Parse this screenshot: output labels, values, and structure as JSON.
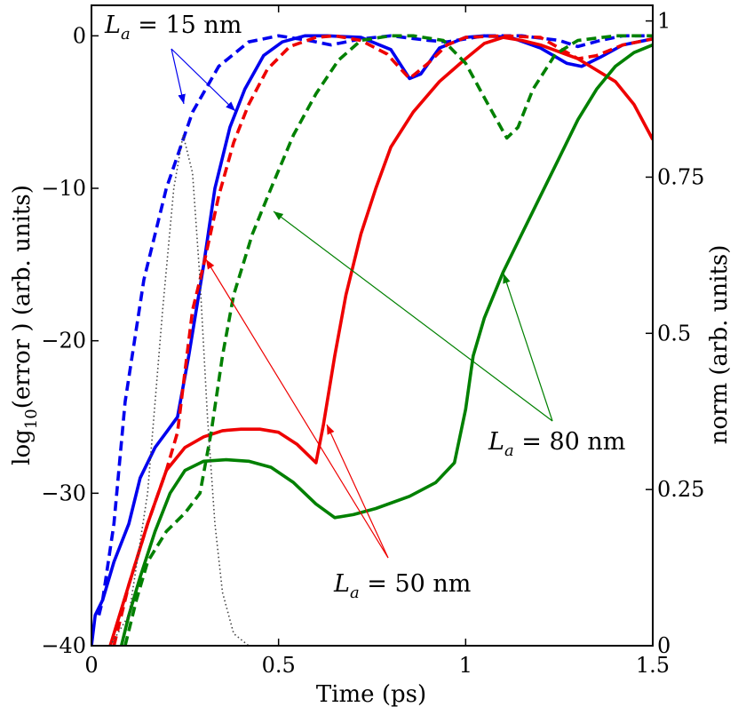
{
  "chart_data": {
    "type": "line",
    "xlabel": "Time  (ps)",
    "ylabel_left": "log10(error ) (arb. units)",
    "ylabel_left_parts": {
      "pre": "log",
      "sub": "10",
      "post": "(error ) (arb. units)"
    },
    "ylabel_right": "norm (arb. units)",
    "xlim": [
      0,
      1.5
    ],
    "ylim_left": [
      -40,
      2
    ],
    "ylim_right": [
      0,
      1.025
    ],
    "x_ticks": [
      0,
      0.5,
      1,
      1.5
    ],
    "x_tick_labels": [
      "0",
      "0.5",
      "1",
      "1.5"
    ],
    "y_left_ticks": [
      0,
      -10,
      -20,
      -30,
      -40
    ],
    "y_left_tick_labels": [
      "0",
      "−10",
      "−20",
      "−30",
      "−40"
    ],
    "y_right_ticks": [
      1,
      0.75,
      0.5,
      0.25,
      0
    ],
    "y_right_tick_labels": [
      "1",
      "0.75",
      "0.5",
      "0.25",
      "0"
    ],
    "series": [
      {
        "name": "La=15 nm solid",
        "color": "#0000ee",
        "style": "solid",
        "points": [
          [
            0,
            -40
          ],
          [
            0.01,
            -38
          ],
          [
            0.03,
            -37
          ],
          [
            0.06,
            -34.5
          ],
          [
            0.1,
            -32
          ],
          [
            0.13,
            -29
          ],
          [
            0.17,
            -27
          ],
          [
            0.2,
            -26
          ],
          [
            0.23,
            -25
          ],
          [
            0.26,
            -21
          ],
          [
            0.3,
            -15
          ],
          [
            0.33,
            -10
          ],
          [
            0.37,
            -6
          ],
          [
            0.41,
            -3.5
          ],
          [
            0.46,
            -1.3
          ],
          [
            0.51,
            -0.4
          ],
          [
            0.57,
            0
          ],
          [
            0.63,
            0
          ],
          [
            0.72,
            -0.1
          ],
          [
            0.8,
            -0.9
          ],
          [
            0.85,
            -2.8
          ],
          [
            0.88,
            -2.5
          ],
          [
            0.93,
            -0.8
          ],
          [
            1.0,
            -0.1
          ],
          [
            1.05,
            0
          ],
          [
            1.12,
            -0.1
          ],
          [
            1.2,
            -0.8
          ],
          [
            1.27,
            -1.8
          ],
          [
            1.31,
            -2.0
          ],
          [
            1.36,
            -1.4
          ],
          [
            1.42,
            -0.6
          ],
          [
            1.5,
            -0.2
          ]
        ]
      },
      {
        "name": "La=15 nm dashed",
        "color": "#0000ee",
        "style": "dashed",
        "points": [
          [
            0.02,
            -38
          ],
          [
            0.03,
            -37
          ],
          [
            0.06,
            -32
          ],
          [
            0.09,
            -24
          ],
          [
            0.14,
            -16
          ],
          [
            0.2,
            -10
          ],
          [
            0.27,
            -5
          ],
          [
            0.34,
            -2
          ],
          [
            0.42,
            -0.4
          ],
          [
            0.5,
            0
          ],
          [
            0.58,
            -0.3
          ],
          [
            0.64,
            -0.6
          ],
          [
            0.72,
            -0.2
          ],
          [
            0.8,
            0
          ],
          [
            0.9,
            -0.3
          ],
          [
            0.95,
            -0.4
          ],
          [
            1.05,
            0
          ],
          [
            1.15,
            0
          ],
          [
            1.25,
            -0.3
          ],
          [
            1.3,
            -0.7
          ],
          [
            1.36,
            -0.3
          ],
          [
            1.42,
            0
          ],
          [
            1.5,
            0
          ]
        ]
      },
      {
        "name": "La=50 nm solid",
        "color": "#ee0000",
        "style": "solid",
        "points": [
          [
            0.05,
            -40
          ],
          [
            0.1,
            -36
          ],
          [
            0.15,
            -32
          ],
          [
            0.2,
            -28.5
          ],
          [
            0.25,
            -27
          ],
          [
            0.3,
            -26.3
          ],
          [
            0.35,
            -25.9
          ],
          [
            0.4,
            -25.8
          ],
          [
            0.45,
            -25.8
          ],
          [
            0.5,
            -26
          ],
          [
            0.55,
            -26.8
          ],
          [
            0.6,
            -28
          ],
          [
            0.62,
            -25.5
          ],
          [
            0.65,
            -21
          ],
          [
            0.68,
            -17
          ],
          [
            0.72,
            -13
          ],
          [
            0.76,
            -10
          ],
          [
            0.8,
            -7.3
          ],
          [
            0.86,
            -5
          ],
          [
            0.93,
            -3
          ],
          [
            1.0,
            -1.5
          ],
          [
            1.05,
            -0.5
          ],
          [
            1.1,
            -0.1
          ],
          [
            1.15,
            -0.3
          ],
          [
            1.2,
            -0.6
          ],
          [
            1.3,
            -1.5
          ],
          [
            1.4,
            -3
          ],
          [
            1.45,
            -4.5
          ],
          [
            1.5,
            -6.8
          ]
        ]
      },
      {
        "name": "La=50 nm dashed",
        "color": "#ee0000",
        "style": "dashed",
        "points": [
          [
            0.06,
            -40
          ],
          [
            0.1,
            -36
          ],
          [
            0.15,
            -32
          ],
          [
            0.2,
            -28.5
          ],
          [
            0.23,
            -26
          ],
          [
            0.25,
            -22
          ],
          [
            0.27,
            -18
          ],
          [
            0.3,
            -15
          ],
          [
            0.34,
            -10.5
          ],
          [
            0.38,
            -7
          ],
          [
            0.42,
            -4.5
          ],
          [
            0.47,
            -2.2
          ],
          [
            0.53,
            -0.7
          ],
          [
            0.6,
            -0.1
          ],
          [
            0.65,
            0
          ],
          [
            0.72,
            -0.3
          ],
          [
            0.79,
            -1.2
          ],
          [
            0.85,
            -2.8
          ],
          [
            0.9,
            -1.8
          ],
          [
            0.95,
            -0.6
          ],
          [
            1.0,
            -0.1
          ],
          [
            1.1,
            0
          ],
          [
            1.2,
            -0.1
          ],
          [
            1.3,
            -1.5
          ],
          [
            1.35,
            -1.3
          ],
          [
            1.42,
            -0.6
          ],
          [
            1.5,
            -0.2
          ]
        ]
      },
      {
        "name": "La=80 nm solid",
        "color": "#008000",
        "style": "solid",
        "points": [
          [
            0.08,
            -40
          ],
          [
            0.1,
            -38
          ],
          [
            0.13,
            -35.5
          ],
          [
            0.17,
            -32.5
          ],
          [
            0.21,
            -30
          ],
          [
            0.25,
            -28.5
          ],
          [
            0.3,
            -27.9
          ],
          [
            0.36,
            -27.8
          ],
          [
            0.42,
            -27.9
          ],
          [
            0.48,
            -28.3
          ],
          [
            0.54,
            -29.3
          ],
          [
            0.6,
            -30.7
          ],
          [
            0.65,
            -31.6
          ],
          [
            0.7,
            -31.4
          ],
          [
            0.76,
            -31
          ],
          [
            0.85,
            -30.2
          ],
          [
            0.92,
            -29.3
          ],
          [
            0.97,
            -28
          ],
          [
            1.0,
            -24.5
          ],
          [
            1.02,
            -21
          ],
          [
            1.05,
            -18.5
          ],
          [
            1.1,
            -15.5
          ],
          [
            1.15,
            -13
          ],
          [
            1.2,
            -10.5
          ],
          [
            1.25,
            -8
          ],
          [
            1.3,
            -5.5
          ],
          [
            1.35,
            -3.5
          ],
          [
            1.4,
            -2
          ],
          [
            1.45,
            -1.1
          ],
          [
            1.5,
            -0.6
          ]
        ]
      },
      {
        "name": "La=80 nm dashed",
        "color": "#008000",
        "style": "dashed",
        "points": [
          [
            0.09,
            -40
          ],
          [
            0.12,
            -37
          ],
          [
            0.15,
            -34.5
          ],
          [
            0.2,
            -32.5
          ],
          [
            0.25,
            -31.3
          ],
          [
            0.29,
            -30
          ],
          [
            0.32,
            -26
          ],
          [
            0.35,
            -21
          ],
          [
            0.38,
            -17
          ],
          [
            0.43,
            -13
          ],
          [
            0.48,
            -10
          ],
          [
            0.54,
            -6.5
          ],
          [
            0.6,
            -3.8
          ],
          [
            0.66,
            -1.6
          ],
          [
            0.72,
            -0.3
          ],
          [
            0.8,
            0
          ],
          [
            0.86,
            0
          ],
          [
            0.94,
            -0.3
          ],
          [
            1.0,
            -1.8
          ],
          [
            1.06,
            -4.5
          ],
          [
            1.11,
            -6.7
          ],
          [
            1.14,
            -6
          ],
          [
            1.18,
            -3.5
          ],
          [
            1.24,
            -1.2
          ],
          [
            1.3,
            -0.3
          ],
          [
            1.4,
            0
          ],
          [
            1.5,
            0
          ]
        ]
      },
      {
        "name": "pulse (norm)",
        "color": "#444444",
        "style": "dotted",
        "points": [
          [
            0.05,
            -40
          ],
          [
            0.1,
            -38
          ],
          [
            0.15,
            -30
          ],
          [
            0.19,
            -18
          ],
          [
            0.22,
            -10
          ],
          [
            0.245,
            -6.5
          ],
          [
            0.27,
            -9
          ],
          [
            0.29,
            -16
          ],
          [
            0.31,
            -25
          ],
          [
            0.33,
            -32
          ],
          [
            0.35,
            -36.5
          ],
          [
            0.38,
            -39.2
          ],
          [
            0.42,
            -40
          ],
          [
            1.5,
            -40
          ]
        ]
      }
    ],
    "annotations": [
      {
        "label": "L",
        "sub": "a",
        "text": " = 15 nm"
      },
      {
        "label": "L",
        "sub": "a",
        "text": " = 50 nm"
      },
      {
        "label": "L",
        "sub": "a",
        "text": " = 80 nm"
      }
    ]
  }
}
